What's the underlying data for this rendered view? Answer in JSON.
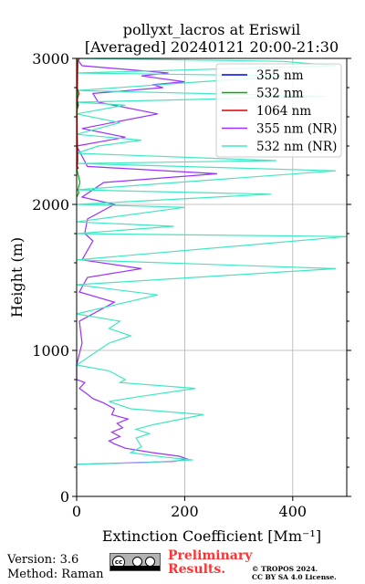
{
  "chart_data": {
    "type": "line",
    "title": "pollyxt_lacros at Eriswil",
    "subtitle": "[Averaged] 20240121 20:00-21:30",
    "xlabel": "Extinction Coefficient [Mm⁻¹]",
    "ylabel": "Height (m)",
    "xlim": [
      0,
      500
    ],
    "ylim": [
      0,
      3000
    ],
    "xticks": [
      0,
      200,
      400
    ],
    "yticks": [
      0,
      1000,
      2000,
      3000
    ],
    "grid": true,
    "legend_position": "top-right",
    "series": [
      {
        "name": "355 nm",
        "color": "#0000ff",
        "points": [
          [
            1,
            2650
          ],
          [
            3,
            2680
          ],
          [
            2,
            2700
          ],
          [
            1,
            2720
          ]
        ]
      },
      {
        "name": "532 nm",
        "color": "#00b000",
        "points": [
          [
            0,
            2050
          ],
          [
            4,
            2080
          ],
          [
            2,
            2100
          ],
          [
            6,
            2150
          ],
          [
            3,
            2200
          ],
          [
            1,
            2230
          ],
          [
            0,
            2260
          ],
          [
            2,
            2980
          ],
          [
            0,
            3000
          ]
        ]
      },
      {
        "name": "1064 nm",
        "color": "#dd0000",
        "points": [
          [
            0,
            2240
          ],
          [
            3,
            2250
          ],
          [
            1,
            2260
          ],
          [
            2,
            2300
          ],
          [
            0,
            2700
          ],
          [
            4,
            2760
          ],
          [
            1,
            2800
          ],
          [
            2,
            2980
          ],
          [
            5,
            3000
          ]
        ]
      },
      {
        "name": "355 nm (NR)",
        "color": "#9b30ff",
        "points": [
          [
            0,
            220
          ],
          [
            100,
            230
          ],
          [
            180,
            240
          ],
          [
            205,
            255
          ],
          [
            190,
            275
          ],
          [
            140,
            300
          ],
          [
            90,
            330
          ],
          [
            70,
            360
          ],
          [
            60,
            380
          ],
          [
            80,
            410
          ],
          [
            65,
            440
          ],
          [
            85,
            470
          ],
          [
            75,
            500
          ],
          [
            95,
            530
          ],
          [
            65,
            560
          ],
          [
            70,
            600
          ],
          [
            50,
            640
          ],
          [
            30,
            670
          ],
          [
            20,
            700
          ],
          [
            5,
            740
          ],
          [
            15,
            780
          ],
          [
            0,
            800
          ],
          [
            0,
            900
          ],
          [
            10,
            1050
          ],
          [
            5,
            1200
          ],
          [
            70,
            1330
          ],
          [
            5,
            1400
          ],
          [
            20,
            1500
          ],
          [
            120,
            1560
          ],
          [
            10,
            1620
          ],
          [
            30,
            1750
          ],
          [
            15,
            1800
          ],
          [
            20,
            1900
          ],
          [
            70,
            2000
          ],
          [
            10,
            2050
          ],
          [
            50,
            2150
          ],
          [
            260,
            2210
          ],
          [
            20,
            2260
          ],
          [
            0,
            2400
          ],
          [
            90,
            2460
          ],
          [
            10,
            2520
          ],
          [
            150,
            2620
          ],
          [
            40,
            2700
          ],
          [
            30,
            2760
          ],
          [
            160,
            2800
          ],
          [
            140,
            2820
          ],
          [
            200,
            2840
          ],
          [
            120,
            2880
          ],
          [
            170,
            2900
          ],
          [
            10,
            2950
          ],
          [
            0,
            3000
          ]
        ]
      },
      {
        "name": "532 nm (NR)",
        "color": "#40e8c0",
        "points": [
          [
            0,
            220
          ],
          [
            120,
            230
          ],
          [
            215,
            250
          ],
          [
            160,
            270
          ],
          [
            100,
            300
          ],
          [
            120,
            340
          ],
          [
            110,
            400
          ],
          [
            135,
            430
          ],
          [
            110,
            460
          ],
          [
            140,
            490
          ],
          [
            235,
            560
          ],
          [
            100,
            600
          ],
          [
            60,
            650
          ],
          [
            110,
            680
          ],
          [
            220,
            740
          ],
          [
            80,
            780
          ],
          [
            90,
            800
          ],
          [
            60,
            860
          ],
          [
            0,
            900
          ],
          [
            60,
            1050
          ],
          [
            100,
            1100
          ],
          [
            60,
            1150
          ],
          [
            80,
            1200
          ],
          [
            0,
            1250
          ],
          [
            150,
            1380
          ],
          [
            0,
            1450
          ],
          [
            480,
            1560
          ],
          [
            0,
            1620
          ],
          [
            500,
            1780
          ],
          [
            0,
            1800
          ],
          [
            180,
            1850
          ],
          [
            0,
            1880
          ],
          [
            200,
            1980
          ],
          [
            0,
            2000
          ],
          [
            360,
            2070
          ],
          [
            0,
            2100
          ],
          [
            480,
            2230
          ],
          [
            0,
            2280
          ],
          [
            370,
            2300
          ],
          [
            0,
            2350
          ],
          [
            40,
            2400
          ],
          [
            120,
            2440
          ],
          [
            0,
            2480
          ],
          [
            80,
            2560
          ],
          [
            0,
            2620
          ],
          [
            90,
            2680
          ],
          [
            0,
            2700
          ],
          [
            460,
            2740
          ],
          [
            0,
            2780
          ],
          [
            230,
            2840
          ],
          [
            400,
            2880
          ],
          [
            0,
            2900
          ],
          [
            480,
            2950
          ],
          [
            380,
            2980
          ],
          [
            0,
            3000
          ]
        ]
      }
    ]
  },
  "footer": {
    "version": "Version: 3.6",
    "method": "Method: Raman",
    "preliminary_line1": "Preliminary",
    "preliminary_line2": "Results.",
    "copyright_line1": "© TROPOS 2024.",
    "copyright_line2": "CC BY SA 4.0 License."
  }
}
